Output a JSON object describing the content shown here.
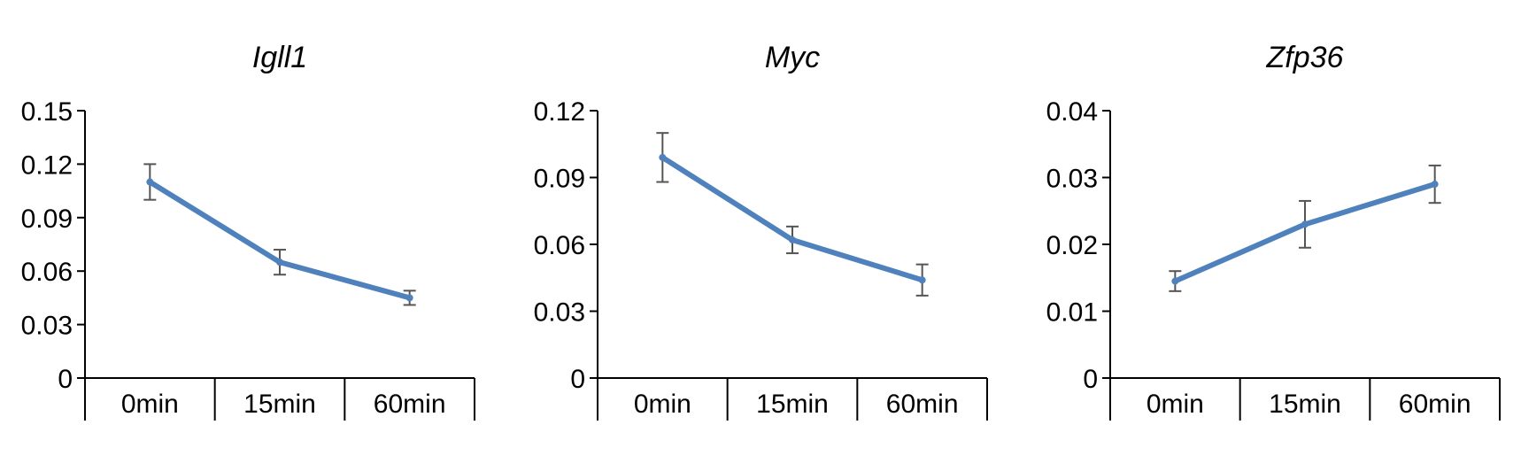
{
  "chart_data": [
    {
      "type": "line",
      "title": "Igll1",
      "categories": [
        "0min",
        "15min",
        "60min"
      ],
      "values": [
        0.11,
        0.065,
        0.045
      ],
      "errors": [
        0.01,
        0.007,
        0.004
      ],
      "yticks": [
        "0",
        "0.03",
        "0.06",
        "0.09",
        "0.12",
        "0.15"
      ],
      "ylim": [
        0,
        0.15
      ],
      "color": "#4f81bd"
    },
    {
      "type": "line",
      "title": "Myc",
      "categories": [
        "0min",
        "15min",
        "60min"
      ],
      "values": [
        0.099,
        0.062,
        0.044
      ],
      "errors": [
        0.011,
        0.006,
        0.007
      ],
      "yticks": [
        "0",
        "0.03",
        "0.06",
        "0.09",
        "0.12"
      ],
      "ylim": [
        0,
        0.12
      ],
      "color": "#4f81bd"
    },
    {
      "type": "line",
      "title": "Zfp36",
      "categories": [
        "0min",
        "15min",
        "60min"
      ],
      "values": [
        0.0145,
        0.023,
        0.029
      ],
      "errors": [
        0.0015,
        0.0035,
        0.0028
      ],
      "yticks": [
        "0",
        "0.01",
        "0.02",
        "0.03",
        "0.04"
      ],
      "ylim": [
        0,
        0.04
      ],
      "color": "#4f81bd"
    }
  ]
}
